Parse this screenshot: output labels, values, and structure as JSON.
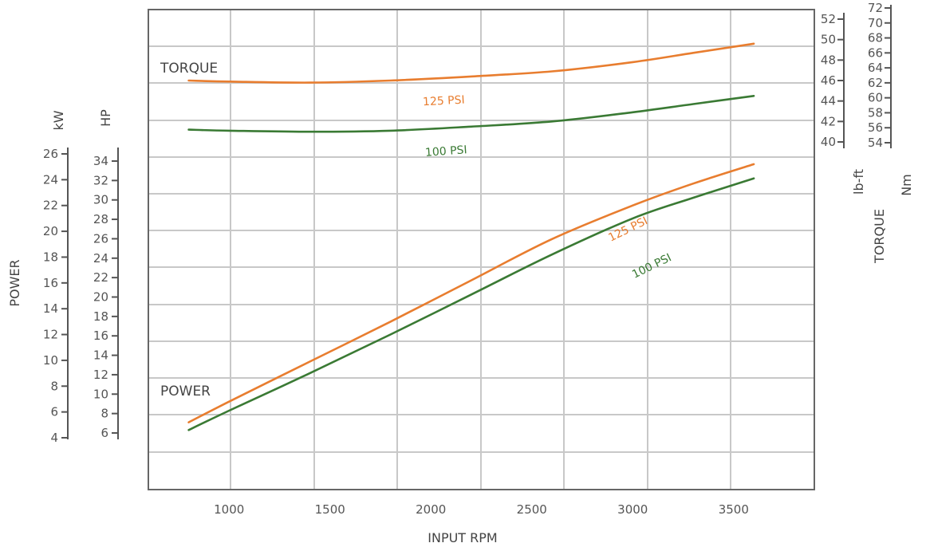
{
  "chart_data": {
    "type": "line",
    "xlabel": "INPUT RPM",
    "x_ticks": [
      "1000",
      "1500",
      "2000",
      "2500",
      "3000",
      "3500"
    ],
    "xlim": [
      600,
      3900
    ],
    "grid": true,
    "colors": {
      "125 PSI": "#e87d2f",
      "100 PSI": "#3a7a34"
    },
    "group_labels": {
      "torque": "TORQUE",
      "power": "POWER"
    },
    "left_axes": {
      "title": "POWER",
      "kw": {
        "unit": "kW",
        "range": [
          4,
          26
        ],
        "ticks": [
          "4",
          "6",
          "8",
          "10",
          "12",
          "14",
          "16",
          "18",
          "20",
          "22",
          "24",
          "26"
        ]
      },
      "hp": {
        "unit": "HP",
        "range": [
          6,
          34
        ],
        "ticks": [
          "6",
          "8",
          "10",
          "12",
          "14",
          "16",
          "18",
          "20",
          "22",
          "24",
          "26",
          "28",
          "30",
          "32",
          "34"
        ]
      }
    },
    "right_axes": {
      "title": "TORQUE",
      "lbft": {
        "unit": "lb-ft",
        "range": [
          40,
          52
        ],
        "ticks": [
          "40",
          "42",
          "44",
          "46",
          "48",
          "50",
          "52"
        ]
      },
      "nm": {
        "unit": "Nm",
        "range": [
          54,
          72
        ],
        "ticks": [
          "54",
          "56",
          "58",
          "60",
          "62",
          "64",
          "66",
          "68",
          "70",
          "72"
        ]
      }
    },
    "series": [
      {
        "name": "125 PSI",
        "group": "torque",
        "axis": "lb-ft",
        "x": [
          800,
          1000,
          1400,
          1800,
          2200,
          2600,
          3000,
          3300,
          3600
        ],
        "y": [
          46.0,
          45.9,
          45.8,
          46.0,
          46.4,
          46.9,
          47.8,
          48.7,
          49.6
        ]
      },
      {
        "name": "100 PSI",
        "group": "torque",
        "axis": "lb-ft",
        "x": [
          800,
          1000,
          1400,
          1800,
          2200,
          2600,
          3000,
          3300,
          3600
        ],
        "y": [
          41.2,
          41.1,
          41.0,
          41.1,
          41.5,
          42.0,
          42.9,
          43.7,
          44.5
        ]
      },
      {
        "name": "125 PSI",
        "group": "power",
        "axis": "kW",
        "x": [
          800,
          1000,
          1400,
          1800,
          2200,
          2600,
          3000,
          3300,
          3600
        ],
        "y": [
          5.2,
          6.8,
          9.9,
          13.0,
          16.2,
          19.4,
          22.0,
          23.7,
          25.2
        ]
      },
      {
        "name": "100 PSI",
        "group": "power",
        "axis": "kW",
        "x": [
          800,
          1000,
          1400,
          1800,
          2200,
          2600,
          3000,
          3300,
          3600
        ],
        "y": [
          4.6,
          6.1,
          9.0,
          12.0,
          15.1,
          18.2,
          21.0,
          22.6,
          24.1
        ]
      }
    ]
  }
}
